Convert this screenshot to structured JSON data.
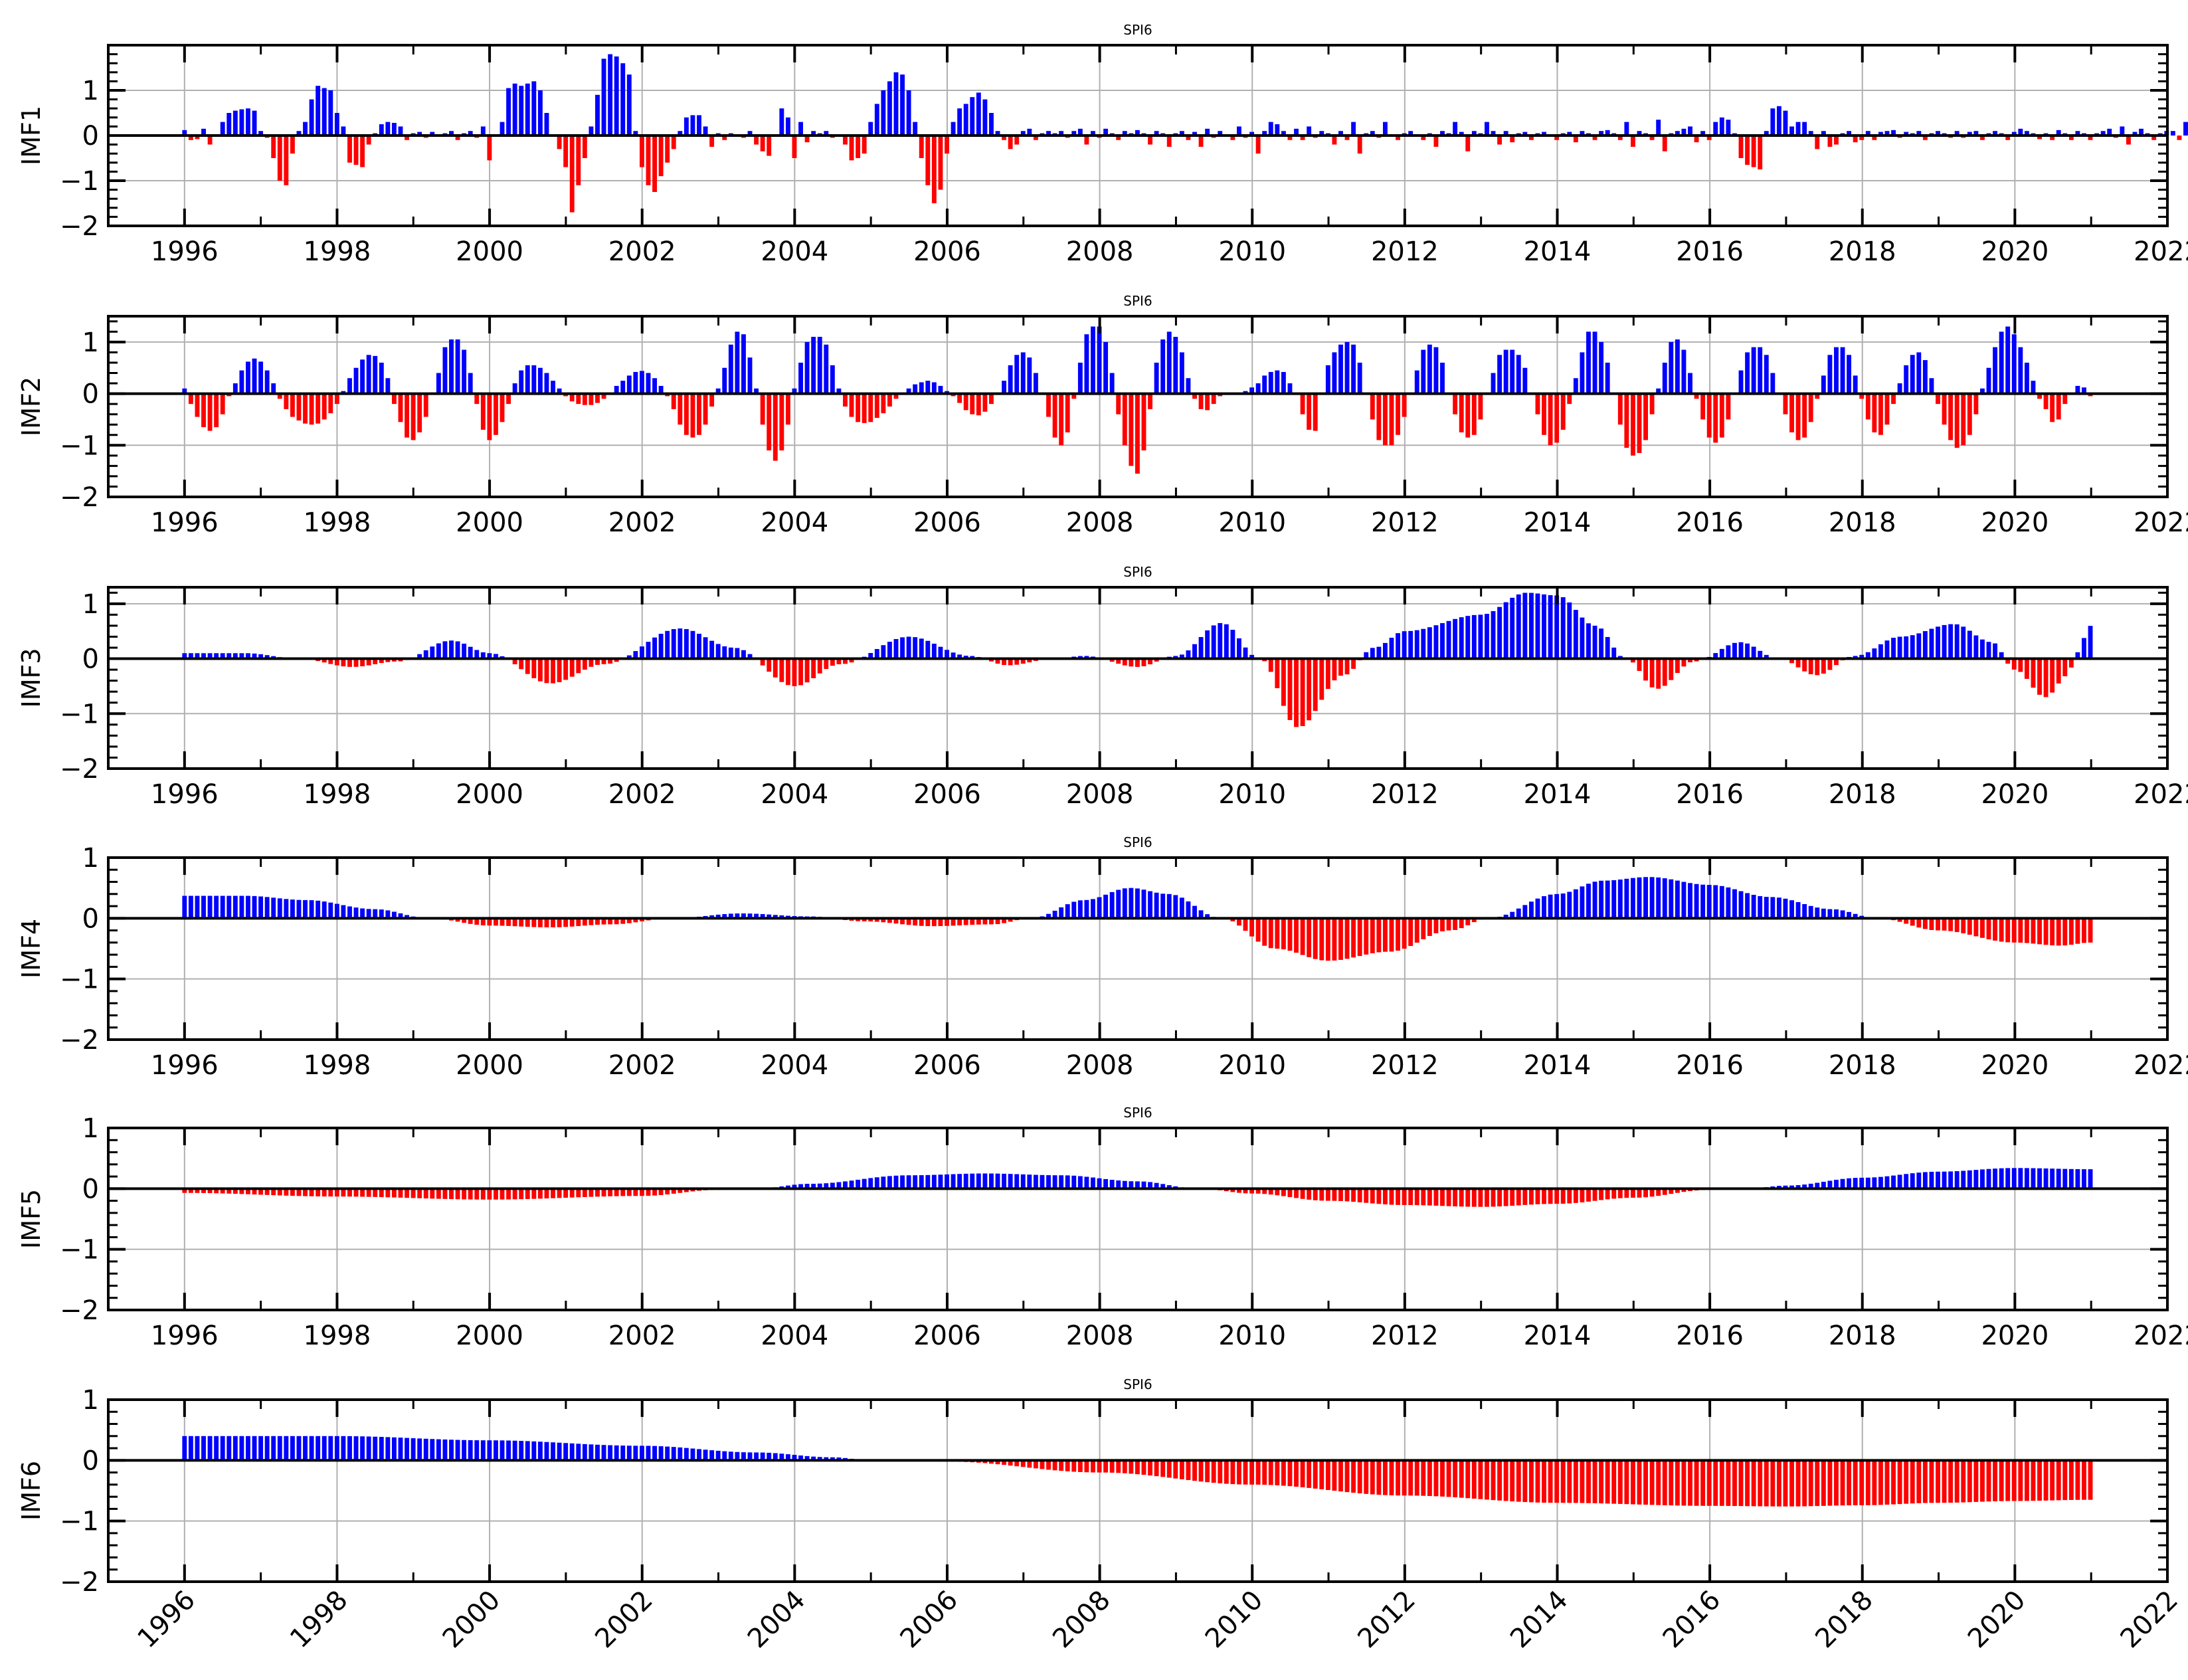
{
  "chart_data": [
    {
      "type": "bar",
      "title": "SPI6",
      "ylabel": "IMF1",
      "xlim": [
        1995,
        2022
      ],
      "ylim": [
        -2,
        2
      ],
      "yticks": [
        -2,
        -1,
        0,
        1
      ],
      "xticks": [
        1996,
        1998,
        2000,
        2002,
        2004,
        2006,
        2008,
        2010,
        2012,
        2014,
        2016,
        2018,
        2020,
        2022
      ],
      "grid": true,
      "positive_color": "#0000ff",
      "negative_color": "#ff0000",
      "x_start": 1996.0,
      "x_step": 0.0833,
      "values": [
        0.12,
        -0.1,
        -0.08,
        0.15,
        -0.2,
        0.0,
        0.3,
        0.5,
        0.55,
        0.58,
        0.6,
        0.55,
        0.1,
        -0.05,
        -0.5,
        -1.0,
        -1.1,
        -0.4,
        0.1,
        0.3,
        0.8,
        1.1,
        1.05,
        1.0,
        0.5,
        0.2,
        -0.6,
        -0.65,
        -0.7,
        -0.2,
        0.05,
        0.25,
        0.3,
        0.28,
        0.2,
        -0.1,
        0.05,
        0.08,
        -0.05,
        0.08,
        -0.03,
        0.05,
        0.1,
        -0.1,
        0.05,
        0.1,
        -0.05,
        0.2,
        -0.55,
        0.0,
        0.3,
        1.05,
        1.15,
        1.1,
        1.15,
        1.2,
        1.0,
        0.5,
        0.0,
        -0.3,
        -0.7,
        -1.7,
        -1.1,
        -0.5,
        0.2,
        0.9,
        1.7,
        1.8,
        1.75,
        1.6,
        1.35,
        0.1,
        -0.7,
        -1.1,
        -1.25,
        -0.9,
        -0.6,
        -0.3,
        0.1,
        0.4,
        0.45,
        0.45,
        0.2,
        -0.25,
        0.05,
        -0.1,
        0.05,
        0.0,
        -0.05,
        0.1,
        -0.2,
        -0.35,
        -0.45,
        0.0,
        0.6,
        0.4,
        -0.5,
        0.3,
        -0.15,
        0.1,
        0.05,
        0.1,
        -0.05,
        0.0,
        -0.2,
        -0.55,
        -0.5,
        -0.4,
        0.3,
        0.7,
        1.0,
        1.2,
        1.4,
        1.35,
        1.0,
        0.3,
        -0.5,
        -1.1,
        -1.5,
        -1.2,
        -0.4,
        0.3,
        0.6,
        0.7,
        0.85,
        0.95,
        0.8,
        0.5,
        0.1,
        -0.1,
        -0.3,
        -0.2,
        0.1,
        0.15,
        -0.1,
        0.05,
        0.1,
        0.05,
        0.1,
        -0.05,
        0.1,
        0.15,
        -0.2,
        0.1,
        -0.05,
        0.15,
        0.05,
        -0.1,
        0.1,
        0.05,
        0.12,
        0.05,
        -0.2,
        0.1,
        0.05,
        -0.25,
        0.05,
        0.1,
        -0.1,
        0.08,
        -0.25,
        0.15,
        -0.05,
        0.1,
        0.0,
        -0.1,
        0.2,
        -0.05,
        0.08,
        -0.4,
        0.1,
        0.3,
        0.25,
        0.1,
        -0.1,
        0.15,
        -0.1,
        0.2,
        -0.05,
        0.1,
        0.05,
        -0.2,
        0.1,
        -0.1,
        0.3,
        -0.4,
        0.05,
        0.1,
        -0.05,
        0.3,
        0.0,
        -0.1,
        0.05,
        0.1,
        0.02,
        -0.1,
        0.05,
        -0.25,
        0.1,
        0.05,
        0.3,
        0.08,
        -0.35,
        0.1,
        0.05,
        0.3,
        0.1,
        -0.2,
        0.1,
        -0.15,
        0.05,
        0.08,
        -0.1,
        0.05,
        0.08,
        0.02,
        -0.1,
        0.05,
        0.08,
        -0.15,
        0.1,
        0.05,
        -0.1,
        0.1,
        0.12,
        0.05,
        -0.1,
        0.3,
        -0.25,
        0.1,
        0.05,
        -0.1,
        0.35,
        -0.35,
        0.05,
        0.1,
        0.15,
        0.2,
        -0.15,
        0.1,
        -0.1,
        0.3,
        0.4,
        0.35,
        0.05,
        -0.5,
        -0.65,
        -0.7,
        -0.75,
        0.1,
        0.6,
        0.65,
        0.55,
        0.2,
        0.3,
        0.3,
        0.1,
        -0.3,
        0.1,
        -0.25,
        -0.2,
        0.05,
        0.1,
        -0.15,
        -0.1,
        0.1,
        -0.1,
        0.08,
        0.1,
        0.12,
        -0.05,
        0.08,
        0.05,
        0.1,
        -0.1,
        0.05,
        0.1,
        0.05,
        -0.05,
        0.1,
        -0.05,
        0.08,
        0.1,
        -0.1,
        0.05,
        0.1,
        0.05,
        -0.1,
        0.08,
        0.15,
        0.1,
        0.05,
        -0.08,
        0.05,
        -0.1,
        0.12,
        0.05,
        -0.1,
        0.1,
        0.05,
        -0.1,
        0.05,
        0.1,
        0.15,
        -0.05,
        0.2,
        -0.2,
        0.08,
        0.15,
        0.05,
        -0.1,
        0.05,
        0.1,
        0.1,
        -0.1,
        0.3,
        0.25,
        0.1,
        -0.2,
        0.1,
        0.08
      ]
    },
    {
      "type": "bar",
      "title": "SPI6",
      "ylabel": "IMF2",
      "xlim": [
        1995,
        2022
      ],
      "ylim": [
        -2,
        1.5
      ],
      "yticks": [
        -2,
        -1,
        0,
        1
      ],
      "xticks": [
        1996,
        1998,
        2000,
        2002,
        2004,
        2006,
        2008,
        2010,
        2012,
        2014,
        2016,
        2018,
        2020,
        2022
      ],
      "grid": true,
      "positive_color": "#0000ff",
      "negative_color": "#ff0000",
      "x_start": 1996.0,
      "x_step": 0.0833,
      "values": [
        0.1,
        -0.2,
        -0.45,
        -0.65,
        -0.72,
        -0.65,
        -0.4,
        -0.05,
        0.2,
        0.45,
        0.62,
        0.68,
        0.62,
        0.45,
        0.2,
        -0.1,
        -0.3,
        -0.45,
        -0.52,
        -0.58,
        -0.6,
        -0.58,
        -0.5,
        -0.38,
        -0.2,
        0.05,
        0.3,
        0.5,
        0.66,
        0.75,
        0.73,
        0.6,
        0.3,
        -0.2,
        -0.55,
        -0.85,
        -0.9,
        -0.75,
        -0.45,
        0.0,
        0.4,
        0.9,
        1.05,
        1.05,
        0.85,
        0.4,
        -0.2,
        -0.7,
        -0.9,
        -0.8,
        -0.55,
        -0.2,
        0.2,
        0.45,
        0.55,
        0.55,
        0.5,
        0.4,
        0.25,
        0.1,
        -0.05,
        -0.15,
        -0.2,
        -0.22,
        -0.22,
        -0.18,
        -0.1,
        0.0,
        0.15,
        0.25,
        0.35,
        0.42,
        0.44,
        0.4,
        0.3,
        0.15,
        -0.05,
        -0.3,
        -0.6,
        -0.8,
        -0.85,
        -0.8,
        -0.6,
        -0.25,
        0.1,
        0.5,
        0.95,
        1.2,
        1.15,
        0.7,
        0.1,
        -0.6,
        -1.1,
        -1.3,
        -1.1,
        -0.6,
        0.1,
        0.6,
        1.0,
        1.1,
        1.1,
        0.95,
        0.55,
        0.1,
        -0.25,
        -0.45,
        -0.55,
        -0.57,
        -0.55,
        -0.47,
        -0.38,
        -0.25,
        -0.1,
        0.0,
        0.1,
        0.18,
        0.22,
        0.25,
        0.22,
        0.15,
        0.05,
        -0.05,
        -0.18,
        -0.32,
        -0.4,
        -0.42,
        -0.35,
        -0.2,
        0.0,
        0.25,
        0.55,
        0.75,
        0.8,
        0.7,
        0.4,
        0.0,
        -0.45,
        -0.85,
        -1.0,
        -0.75,
        -0.1,
        0.6,
        1.15,
        1.3,
        1.3,
        1.0,
        0.4,
        -0.4,
        -1.0,
        -1.4,
        -1.55,
        -1.1,
        -0.3,
        0.6,
        1.05,
        1.2,
        1.1,
        0.8,
        0.3,
        -0.1,
        -0.3,
        -0.32,
        -0.2,
        -0.05,
        0.0,
        0.0,
        0.0,
        0.05,
        0.12,
        0.2,
        0.35,
        0.42,
        0.45,
        0.42,
        0.2,
        0.0,
        -0.4,
        -0.7,
        -0.72,
        0.0,
        0.55,
        0.8,
        0.95,
        1.0,
        0.95,
        0.6,
        0.0,
        -0.5,
        -0.9,
        -1.0,
        -1.0,
        -0.8,
        -0.45,
        0.0,
        0.45,
        0.85,
        0.95,
        0.9,
        0.6,
        0.0,
        -0.4,
        -0.75,
        -0.85,
        -0.8,
        -0.5,
        0.0,
        0.4,
        0.75,
        0.85,
        0.85,
        0.75,
        0.5,
        0.0,
        -0.4,
        -0.8,
        -1.0,
        -0.95,
        -0.7,
        -0.2,
        0.3,
        0.8,
        1.2,
        1.2,
        1.0,
        0.6,
        0.0,
        -0.6,
        -1.05,
        -1.2,
        -1.15,
        -0.9,
        -0.4,
        0.1,
        0.6,
        1.0,
        1.05,
        0.85,
        0.4,
        -0.1,
        -0.5,
        -0.85,
        -0.95,
        -0.85,
        -0.5,
        0.0,
        0.45,
        0.8,
        0.9,
        0.9,
        0.75,
        0.4,
        0.0,
        -0.4,
        -0.75,
        -0.9,
        -0.85,
        -0.55,
        -0.1,
        0.35,
        0.75,
        0.9,
        0.9,
        0.75,
        0.35,
        -0.1,
        -0.5,
        -0.75,
        -0.8,
        -0.6,
        -0.2,
        0.2,
        0.55,
        0.75,
        0.8,
        0.65,
        0.3,
        -0.2,
        -0.6,
        -0.9,
        -1.05,
        -1.0,
        -0.8,
        -0.4,
        0.1,
        0.5,
        0.9,
        1.2,
        1.3,
        1.15,
        0.9,
        0.6,
        0.25,
        -0.1,
        -0.3,
        -0.55,
        -0.5,
        -0.2,
        0.0,
        0.15,
        0.12,
        -0.05
      ]
    },
    {
      "type": "bar",
      "title": "SPI6",
      "ylabel": "IMF3",
      "xlim": [
        1995,
        2022
      ],
      "ylim": [
        -2,
        1.3
      ],
      "yticks": [
        -2,
        -1,
        0,
        1
      ],
      "xticks": [
        1996,
        1998,
        2000,
        2002,
        2004,
        2006,
        2008,
        2010,
        2012,
        2014,
        2016,
        2018,
        2020,
        2022
      ],
      "grid": true,
      "positive_color": "#0000ff",
      "negative_color": "#ff0000",
      "x_start": 1996.0,
      "x_step": 0.0833,
      "nodes": [
        [
          1996.0,
          0.1
        ],
        [
          1996.8,
          0.1
        ],
        [
          1997.5,
          0.0
        ],
        [
          1998.2,
          -0.15
        ],
        [
          1998.8,
          -0.05
        ],
        [
          1999.5,
          0.33
        ],
        [
          2000.0,
          0.1
        ],
        [
          2000.8,
          -0.45
        ],
        [
          2001.5,
          -0.1
        ],
        [
          2002.5,
          0.55
        ],
        [
          2003.2,
          0.2
        ],
        [
          2004.0,
          -0.5
        ],
        [
          2004.6,
          -0.1
        ],
        [
          2005.5,
          0.4
        ],
        [
          2006.3,
          0.05
        ],
        [
          2006.8,
          -0.12
        ],
        [
          2007.4,
          0.0
        ],
        [
          2007.8,
          0.05
        ],
        [
          2008.5,
          -0.15
        ],
        [
          2009.0,
          0.05
        ],
        [
          2009.6,
          0.65
        ],
        [
          2010.1,
          0.0
        ],
        [
          2010.6,
          -1.25
        ],
        [
          2011.2,
          -0.3
        ],
        [
          2011.6,
          0.2
        ],
        [
          2012.0,
          0.5
        ],
        [
          2013.0,
          0.8
        ],
        [
          2013.6,
          1.2
        ],
        [
          2014.0,
          1.15
        ],
        [
          2014.5,
          0.6
        ],
        [
          2014.9,
          0.0
        ],
        [
          2015.3,
          -0.55
        ],
        [
          2015.8,
          -0.05
        ],
        [
          2016.4,
          0.3
        ],
        [
          2016.9,
          0.0
        ],
        [
          2017.4,
          -0.3
        ],
        [
          2017.9,
          0.05
        ],
        [
          2018.5,
          0.4
        ],
        [
          2019.2,
          0.63
        ],
        [
          2019.7,
          0.3
        ],
        [
          2020.0,
          -0.2
        ],
        [
          2020.4,
          -0.7
        ],
        [
          2020.7,
          -0.3
        ],
        [
          2020.8,
          0.1
        ],
        [
          2021.0,
          0.6
        ]
      ]
    },
    {
      "type": "bar",
      "title": "SPI6",
      "ylabel": "IMF4",
      "xlim": [
        1995,
        2022
      ],
      "ylim": [
        -2,
        1
      ],
      "yticks": [
        -2,
        -1,
        0,
        1
      ],
      "xticks": [
        1996,
        1998,
        2000,
        2002,
        2004,
        2006,
        2008,
        2010,
        2012,
        2014,
        2016,
        2018,
        2020,
        2022
      ],
      "grid": true,
      "positive_color": "#0000ff",
      "negative_color": "#ff0000",
      "x_start": 1996.0,
      "x_step": 0.0833,
      "nodes": [
        [
          1996.0,
          0.37
        ],
        [
          1996.8,
          0.37
        ],
        [
          1997.6,
          0.3
        ],
        [
          1998.5,
          0.15
        ],
        [
          1999.2,
          0.0
        ],
        [
          2000.0,
          -0.12
        ],
        [
          2000.8,
          -0.15
        ],
        [
          2001.6,
          -0.1
        ],
        [
          2002.4,
          0.0
        ],
        [
          2003.3,
          0.08
        ],
        [
          2004.2,
          0.03
        ],
        [
          2004.9,
          -0.05
        ],
        [
          2005.8,
          -0.13
        ],
        [
          2006.6,
          -0.1
        ],
        [
          2007.1,
          0.0
        ],
        [
          2007.8,
          0.3
        ],
        [
          2008.4,
          0.5
        ],
        [
          2008.9,
          0.4
        ],
        [
          2009.6,
          0.0
        ],
        [
          2010.3,
          -0.5
        ],
        [
          2011.0,
          -0.7
        ],
        [
          2011.8,
          -0.55
        ],
        [
          2012.6,
          -0.2
        ],
        [
          2013.1,
          0.0
        ],
        [
          2014.0,
          0.4
        ],
        [
          2014.6,
          0.62
        ],
        [
          2015.2,
          0.68
        ],
        [
          2016.0,
          0.55
        ],
        [
          2016.8,
          0.35
        ],
        [
          2017.6,
          0.15
        ],
        [
          2018.2,
          0.0
        ],
        [
          2019.0,
          -0.2
        ],
        [
          2020.0,
          -0.4
        ],
        [
          2020.6,
          -0.45
        ],
        [
          2021.0,
          -0.4
        ]
      ]
    },
    {
      "type": "bar",
      "title": "SPI6",
      "ylabel": "IMF5",
      "xlim": [
        1995,
        2022
      ],
      "ylim": [
        -2,
        1
      ],
      "yticks": [
        -2,
        -1,
        0,
        1
      ],
      "xticks": [
        1996,
        1998,
        2000,
        2002,
        2004,
        2006,
        2008,
        2010,
        2012,
        2014,
        2016,
        2018,
        2020,
        2022
      ],
      "grid": true,
      "positive_color": "#0000ff",
      "negative_color": "#ff0000",
      "x_start": 1996.0,
      "x_step": 0.0833,
      "nodes": [
        [
          1996.0,
          -0.07
        ],
        [
          1998.0,
          -0.13
        ],
        [
          2000.0,
          -0.18
        ],
        [
          2002.0,
          -0.12
        ],
        [
          2003.0,
          -0.02
        ],
        [
          2003.5,
          0.0
        ],
        [
          2004.2,
          0.08
        ],
        [
          2005.5,
          0.22
        ],
        [
          2006.5,
          0.25
        ],
        [
          2007.5,
          0.22
        ],
        [
          2008.5,
          0.12
        ],
        [
          2009.3,
          0.0
        ],
        [
          2010.0,
          -0.08
        ],
        [
          2011.0,
          -0.2
        ],
        [
          2012.0,
          -0.27
        ],
        [
          2013.0,
          -0.3
        ],
        [
          2014.0,
          -0.25
        ],
        [
          2015.0,
          -0.15
        ],
        [
          2016.0,
          -0.02
        ],
        [
          2016.5,
          0.0
        ],
        [
          2017.0,
          0.05
        ],
        [
          2018.0,
          0.18
        ],
        [
          2019.0,
          0.28
        ],
        [
          2020.0,
          0.34
        ],
        [
          2021.0,
          0.32
        ]
      ]
    },
    {
      "type": "bar",
      "title": "SPI6",
      "ylabel": "IMF6",
      "xlim": [
        1995,
        2022
      ],
      "ylim": [
        -2,
        1
      ],
      "yticks": [
        -2,
        -1,
        0,
        1
      ],
      "xticks": [
        1996,
        1998,
        2000,
        2002,
        2004,
        2006,
        2008,
        2010,
        2012,
        2014,
        2016,
        2018,
        2020,
        2022
      ],
      "xtick_rotation": 45,
      "grid": true,
      "positive_color": "#0000ff",
      "negative_color": "#ff0000",
      "x_start": 1996.0,
      "x_step": 0.0833,
      "nodes": [
        [
          1996.0,
          0.4
        ],
        [
          1998.0,
          0.4
        ],
        [
          2000.0,
          0.33
        ],
        [
          2002.0,
          0.24
        ],
        [
          2003.5,
          0.13
        ],
        [
          2004.5,
          0.05
        ],
        [
          2005.0,
          0.0
        ],
        [
          2006.0,
          -0.02
        ],
        [
          2008.0,
          -0.2
        ],
        [
          2010.0,
          -0.4
        ],
        [
          2012.0,
          -0.58
        ],
        [
          2014.0,
          -0.7
        ],
        [
          2016.0,
          -0.75
        ],
        [
          2017.0,
          -0.76
        ],
        [
          2018.0,
          -0.74
        ],
        [
          2019.0,
          -0.7
        ],
        [
          2020.0,
          -0.67
        ],
        [
          2021.0,
          -0.65
        ]
      ]
    }
  ]
}
